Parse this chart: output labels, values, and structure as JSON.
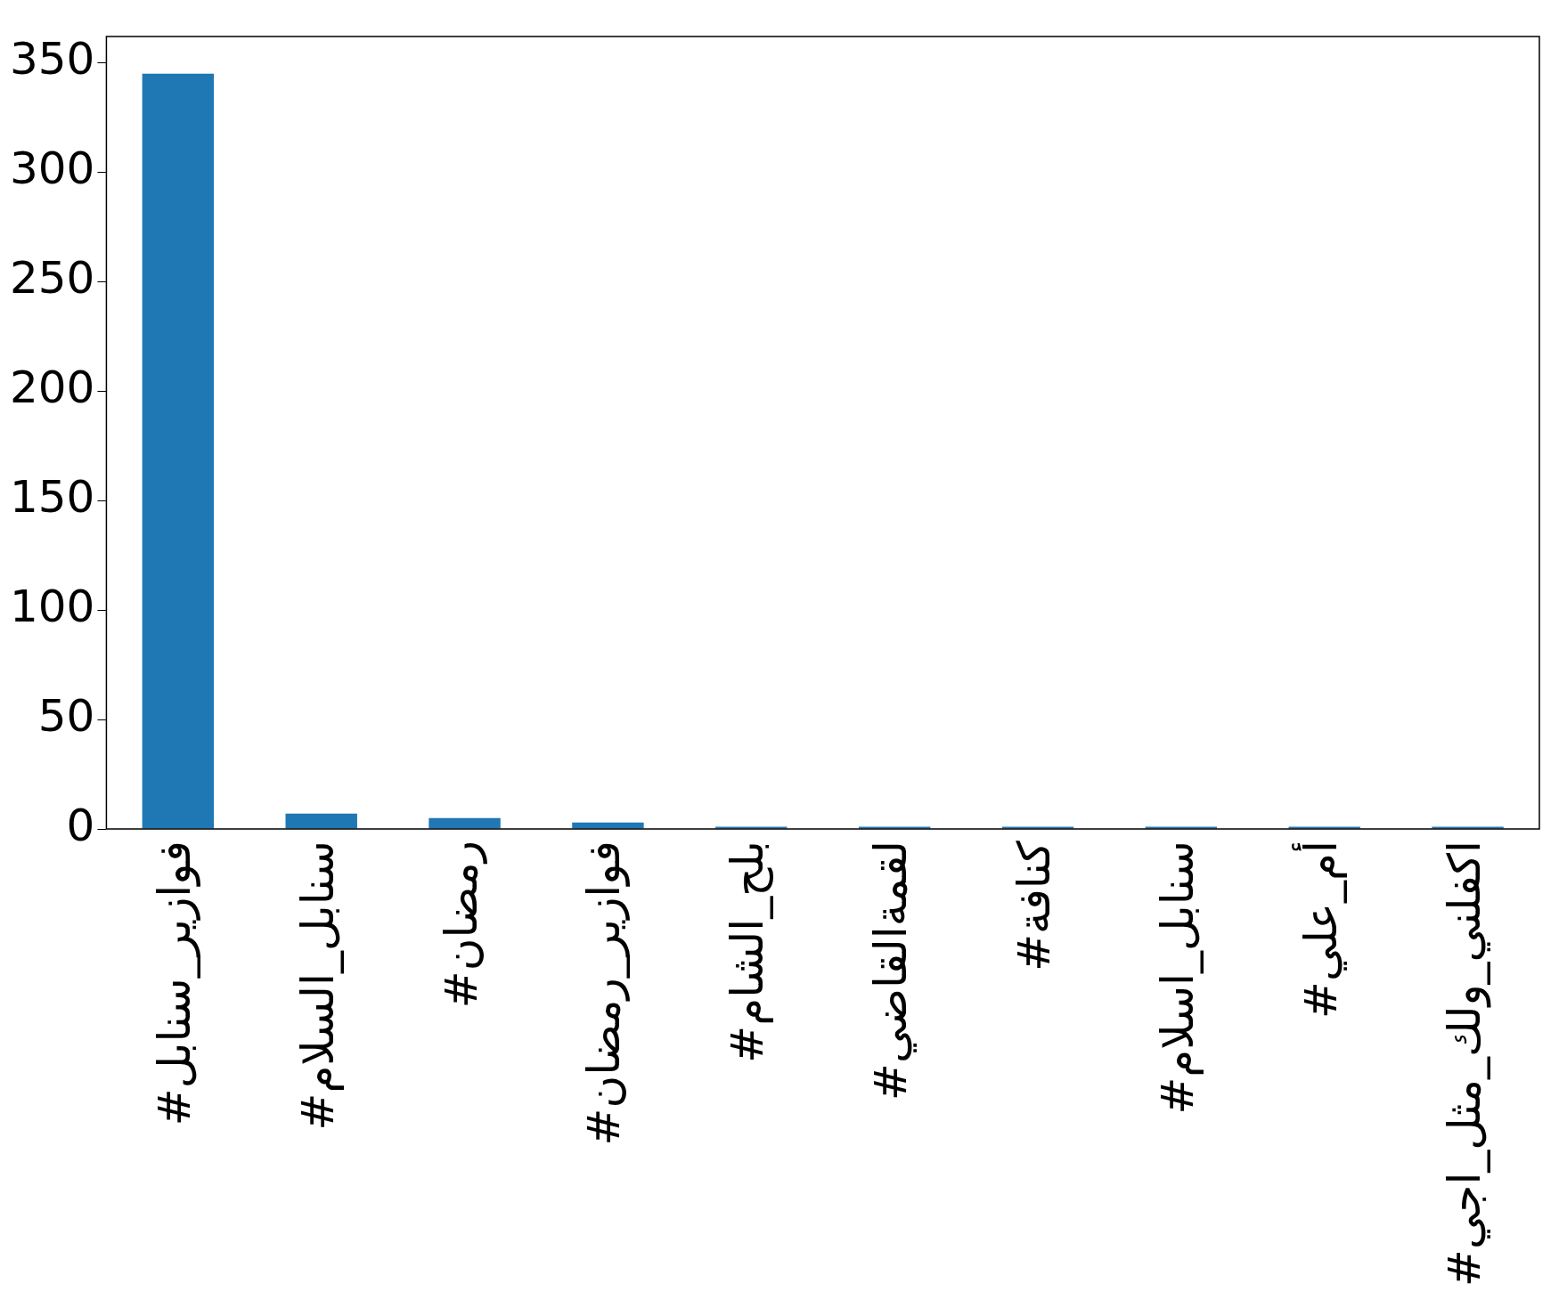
{
  "chart_data": {
    "type": "bar",
    "categories": [
      "#فوازير_سنابل",
      "#سنابل_السلام",
      "#رمضان",
      "#فوازير_رمضان",
      "#بلح_الشام",
      "#لقمةالقاضي",
      "#كنافة",
      "#سنابل_اسلام",
      "#أم_علي",
      "#اكفلني_ولك_مثل_اجي"
    ],
    "values": [
      345,
      7,
      5,
      3,
      1,
      1,
      1,
      1,
      1,
      1
    ],
    "color": "#1f77b4",
    "ylim": [
      0,
      362
    ],
    "yticks": [
      0,
      50,
      100,
      150,
      200,
      250,
      300,
      350
    ],
    "grid": false,
    "legend": false
  }
}
